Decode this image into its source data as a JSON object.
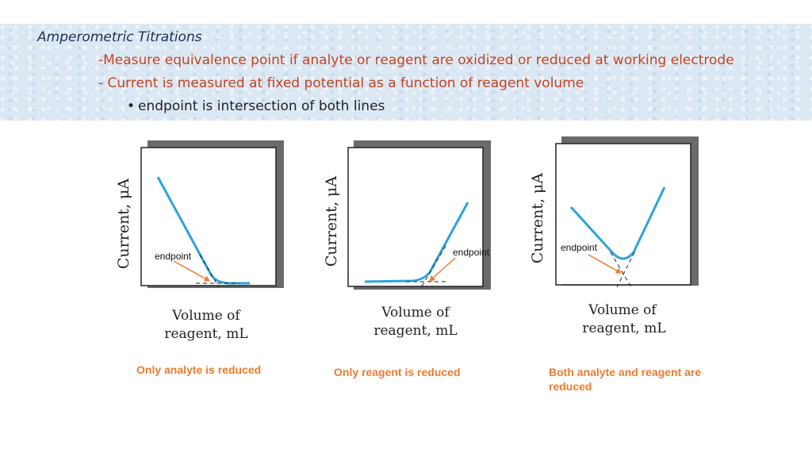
{
  "header": {
    "title": "Amperometric Titrations",
    "point1": "-Measure equivalence point if analyte or reagent are oxidized or reduced at working electrode",
    "point2": "- Current is measured at fixed potential as a function of reagent volume",
    "subpoint": "endpoint is intersection of both lines",
    "bullet_glyph": "•"
  },
  "figures": [
    {
      "y_label": "Current, μA",
      "x_label_line1": "Volume of",
      "x_label_line2": "reagent, mL",
      "endpoint_label": "endpoint",
      "caption": "Only analyte is reduced"
    },
    {
      "y_label": "Current, μA",
      "x_label_line1": "Volume of",
      "x_label_line2": "reagent, mL",
      "endpoint_label": "endpoint",
      "caption": "Only reagent is reduced"
    },
    {
      "y_label": "Current, μA",
      "x_label_line1": "Volume of",
      "x_label_line2": "reagent, mL",
      "endpoint_label": "endpoint",
      "caption": "Both analyte and reagent are reduced"
    }
  ],
  "colors": {
    "curve": "#2fa3dc",
    "arrow": "#ee7b30",
    "caption": "#ee7b30",
    "title_red": "#c8421b"
  }
}
